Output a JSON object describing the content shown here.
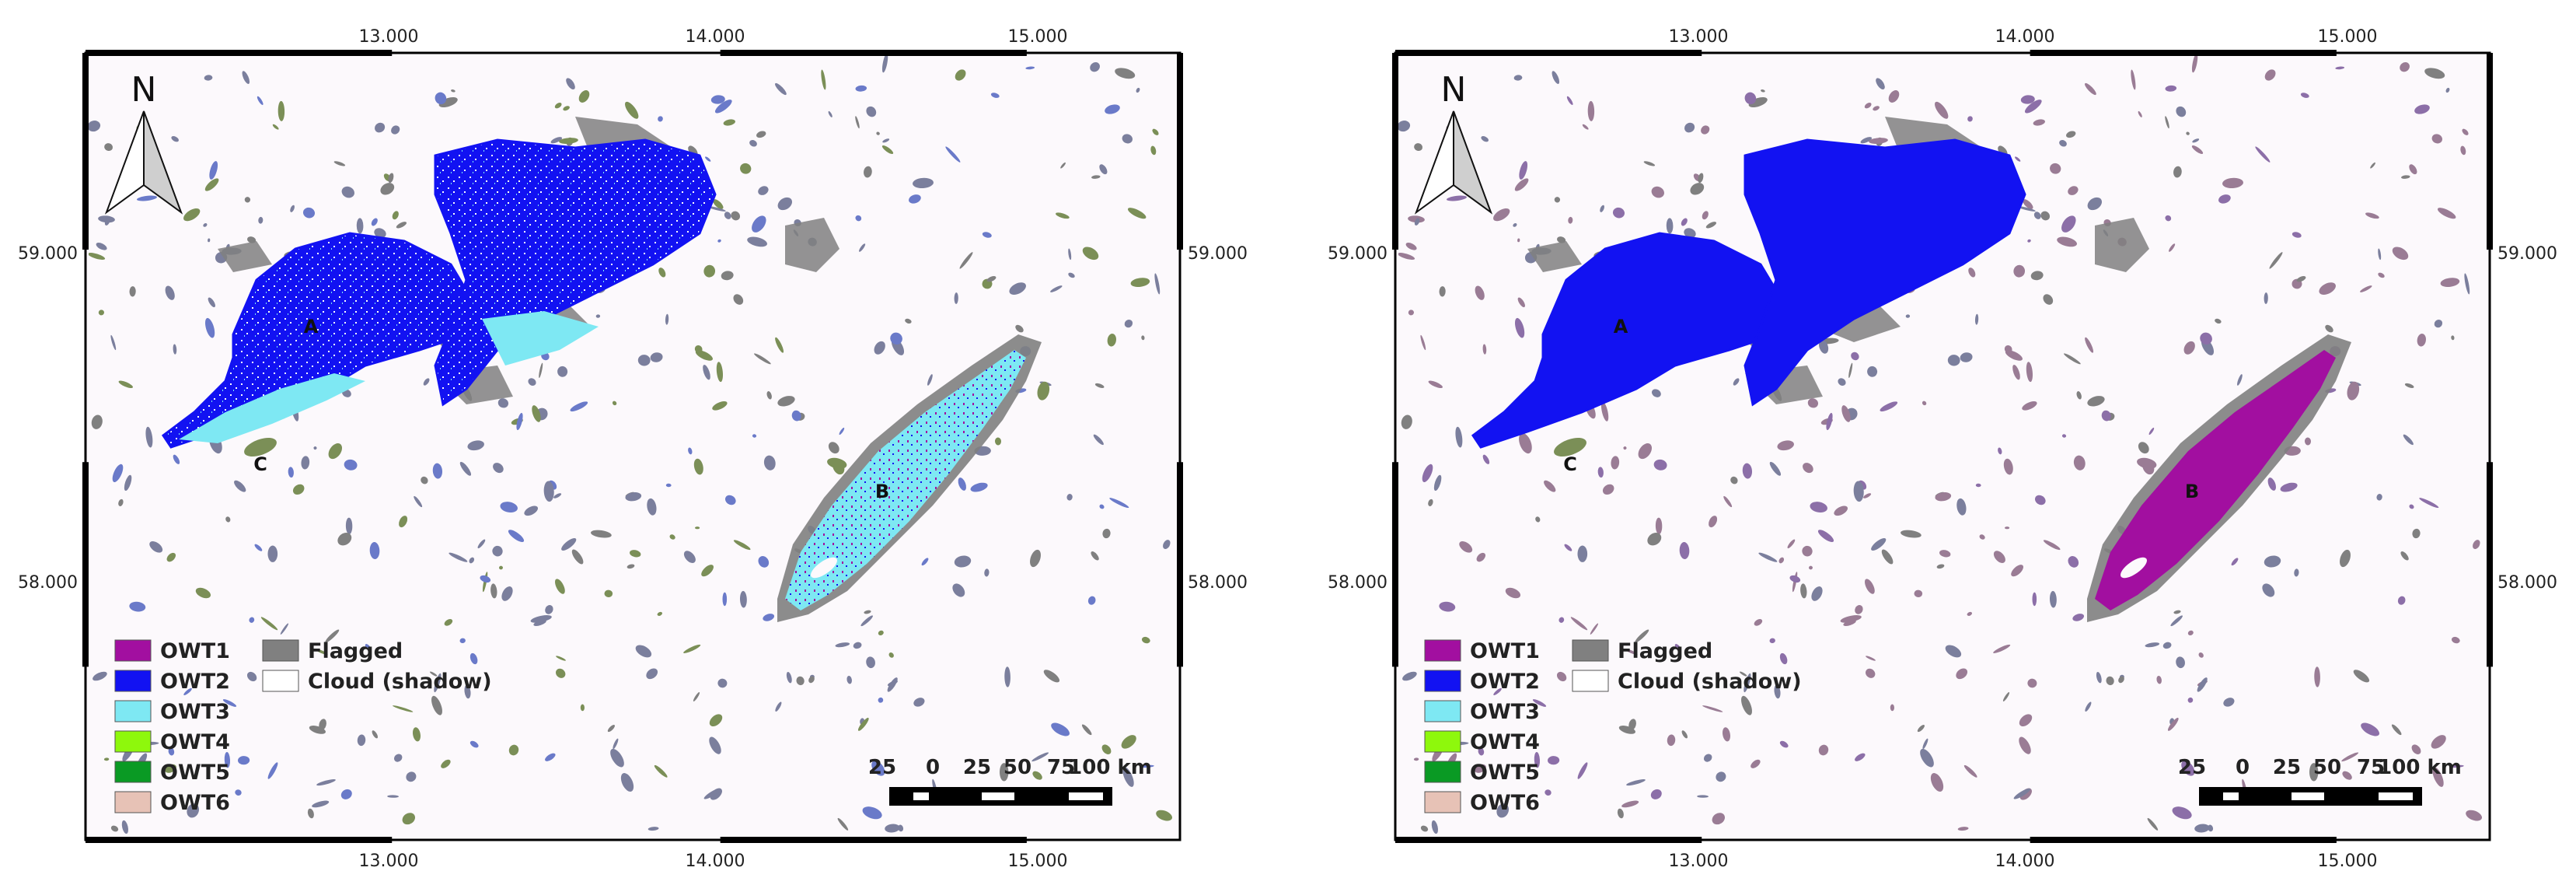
{
  "maps": [
    {
      "id": "left",
      "axes": {
        "x_ticks": [
          "13.000",
          "14.000",
          "15.000"
        ],
        "y_ticks": [
          "59.000",
          "58.000"
        ]
      },
      "north_label": "N",
      "place_labels": [
        "A",
        "B",
        "C"
      ],
      "lake_a_class": "OWT2",
      "lake_a_secondary_class": "OWT3",
      "lake_b_class": "OWT3",
      "lake_b_secondary_class": "OWT1"
    },
    {
      "id": "right",
      "axes": {
        "x_ticks": [
          "13.000",
          "14.000",
          "15.000"
        ],
        "y_ticks": [
          "59.000",
          "58.000"
        ]
      },
      "north_label": "N",
      "place_labels": [
        "A",
        "B",
        "C"
      ],
      "lake_a_class": "OWT2",
      "lake_a_secondary_class": "OWT2",
      "lake_b_class": "OWT1",
      "lake_b_secondary_class": "OWT1"
    }
  ],
  "legend": {
    "left_column": [
      {
        "label": "OWT1",
        "color": "#a20fa0"
      },
      {
        "label": "OWT2",
        "color": "#1212f2"
      },
      {
        "label": "OWT3",
        "color": "#7ee8f3"
      },
      {
        "label": "OWT4",
        "color": "#8ef80c"
      },
      {
        "label": "OWT5",
        "color": "#0a9a24"
      },
      {
        "label": "OWT6",
        "color": "#e7c2b6"
      }
    ],
    "right_column": [
      {
        "label": "Flagged",
        "color": "#808080"
      },
      {
        "label": "Cloud (shadow)",
        "color": "#ffffff"
      }
    ]
  },
  "scale_bar": {
    "labels": [
      "25",
      "0",
      "25",
      "50",
      "75",
      "100 km"
    ]
  },
  "colors": {
    "background": "#fcf9fc",
    "frame": "#000000",
    "flagged_fill": "#808080",
    "owt1": "#a20fa0",
    "owt2": "#1212f2",
    "owt3": "#7ee8f3",
    "owt4": "#8ef80c",
    "owt5": "#0a9a24",
    "owt6": "#e7c2b6",
    "olive_mix": "#7b8f57",
    "gray_blue_mix": "#7b7f9d",
    "mauve_mix": "#9a7c95"
  }
}
